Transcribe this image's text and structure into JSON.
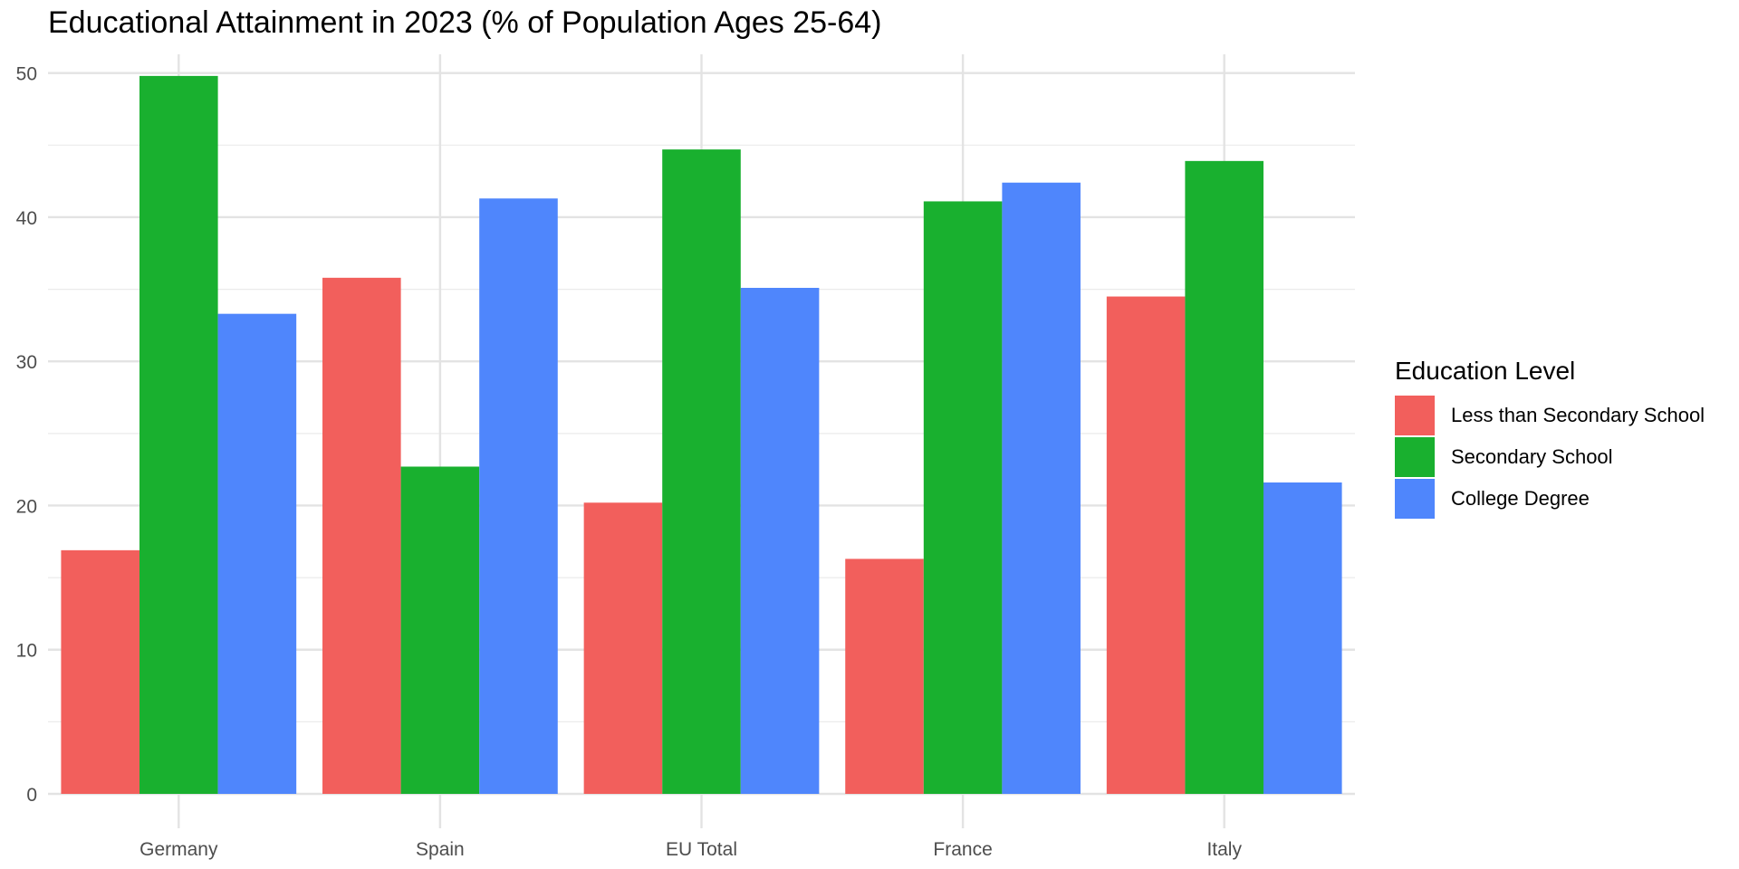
{
  "chart_data": {
    "type": "bar",
    "title": "Educational Attainment in 2023 (% of Population Ages 25-64)",
    "xlabel": "",
    "ylabel": "",
    "categories": [
      "Germany",
      "Spain",
      "EU Total",
      "France",
      "Italy"
    ],
    "series": [
      {
        "name": "Less than Secondary School",
        "color": "#F25F5C",
        "values": [
          16.9,
          35.8,
          20.2,
          16.3,
          34.5
        ]
      },
      {
        "name": "Secondary School",
        "color": "#19B02F",
        "values": [
          49.8,
          22.7,
          44.7,
          41.1,
          43.9
        ]
      },
      {
        "name": "College Degree",
        "color": "#4F86FC",
        "values": [
          33.3,
          41.3,
          35.1,
          42.4,
          21.6
        ]
      }
    ],
    "ylim": [
      0,
      51.3
    ],
    "yticks": [
      0,
      10,
      20,
      30,
      40,
      50
    ],
    "grid": true,
    "legend": {
      "title": "Education Level",
      "position": "right"
    }
  }
}
